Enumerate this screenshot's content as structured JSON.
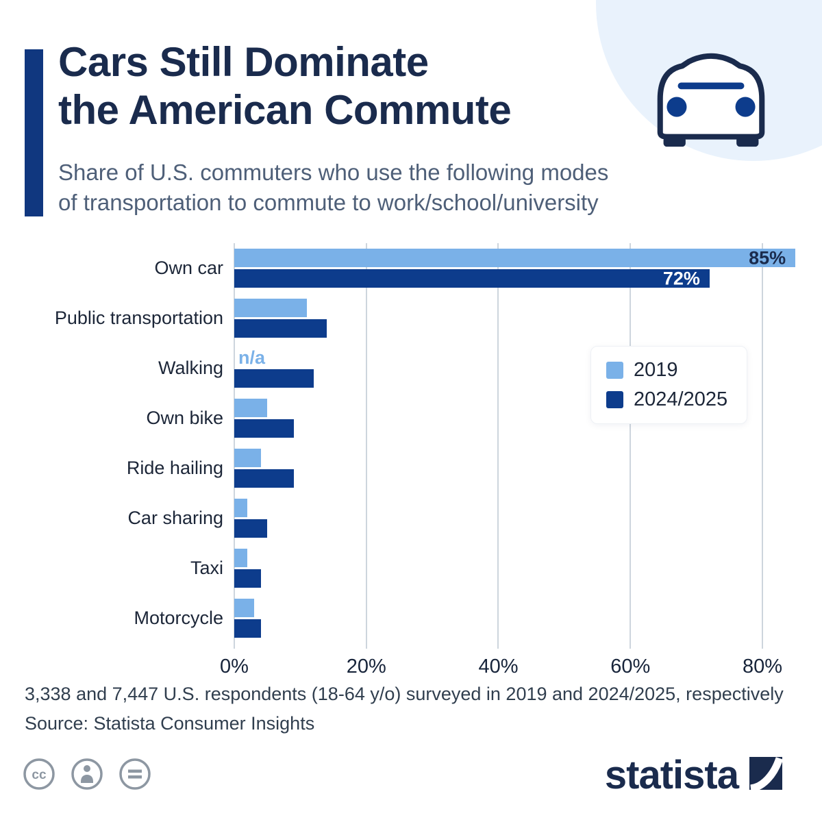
{
  "header": {
    "title": "Cars Still Dominate\nthe American Commute",
    "subtitle": "Share of U.S. commuters who use the following modes\nof transportation to commute to work/school/university"
  },
  "colors": {
    "title_navy": "#1a2b4d",
    "accent_bar": "#10377f",
    "series_2019": "#7ab1e8",
    "series_2024": "#0d3c8c",
    "gridline": "#cdd5dd",
    "background_circle": "#e9f2fc"
  },
  "icons": {
    "header_icon": "car-icon",
    "license": [
      "cc-license-icon",
      "attribution-icon",
      "equals-license-icon"
    ],
    "brand_mark": "statista-logo-mark"
  },
  "chart_data": {
    "type": "bar",
    "orientation": "horizontal",
    "title": "Cars Still Dominate the American Commute",
    "categories": [
      "Own car",
      "Public transportation",
      "Walking",
      "Own bike",
      "Ride hailing",
      "Car sharing",
      "Taxi",
      "Motorcycle"
    ],
    "series": [
      {
        "name": "2019",
        "color": "#7ab1e8",
        "values": [
          85,
          11,
          null,
          5,
          4,
          2,
          2,
          3
        ],
        "labels": [
          "85%",
          null,
          null,
          null,
          null,
          null,
          null,
          null
        ]
      },
      {
        "name": "2024/2025",
        "color": "#0d3c8c",
        "values": [
          72,
          14,
          12,
          9,
          9,
          5,
          4,
          4
        ],
        "labels": [
          "72%",
          null,
          null,
          null,
          null,
          null,
          null,
          null
        ]
      }
    ],
    "na_label": "n/a",
    "x_ticks": [
      "0%",
      "20%",
      "40%",
      "60%",
      "80%"
    ],
    "x_tick_values": [
      0,
      20,
      40,
      60,
      80
    ],
    "xlim": [
      0,
      85.5
    ],
    "grid": "vertical",
    "legend_position": "right-middle"
  },
  "footer": {
    "note": "3,338 and 7,447 U.S. respondents (18-64 y/o) surveyed in 2019 and 2024/2025, respectively",
    "source": "Source: Statista Consumer Insights",
    "brand": "statista"
  }
}
